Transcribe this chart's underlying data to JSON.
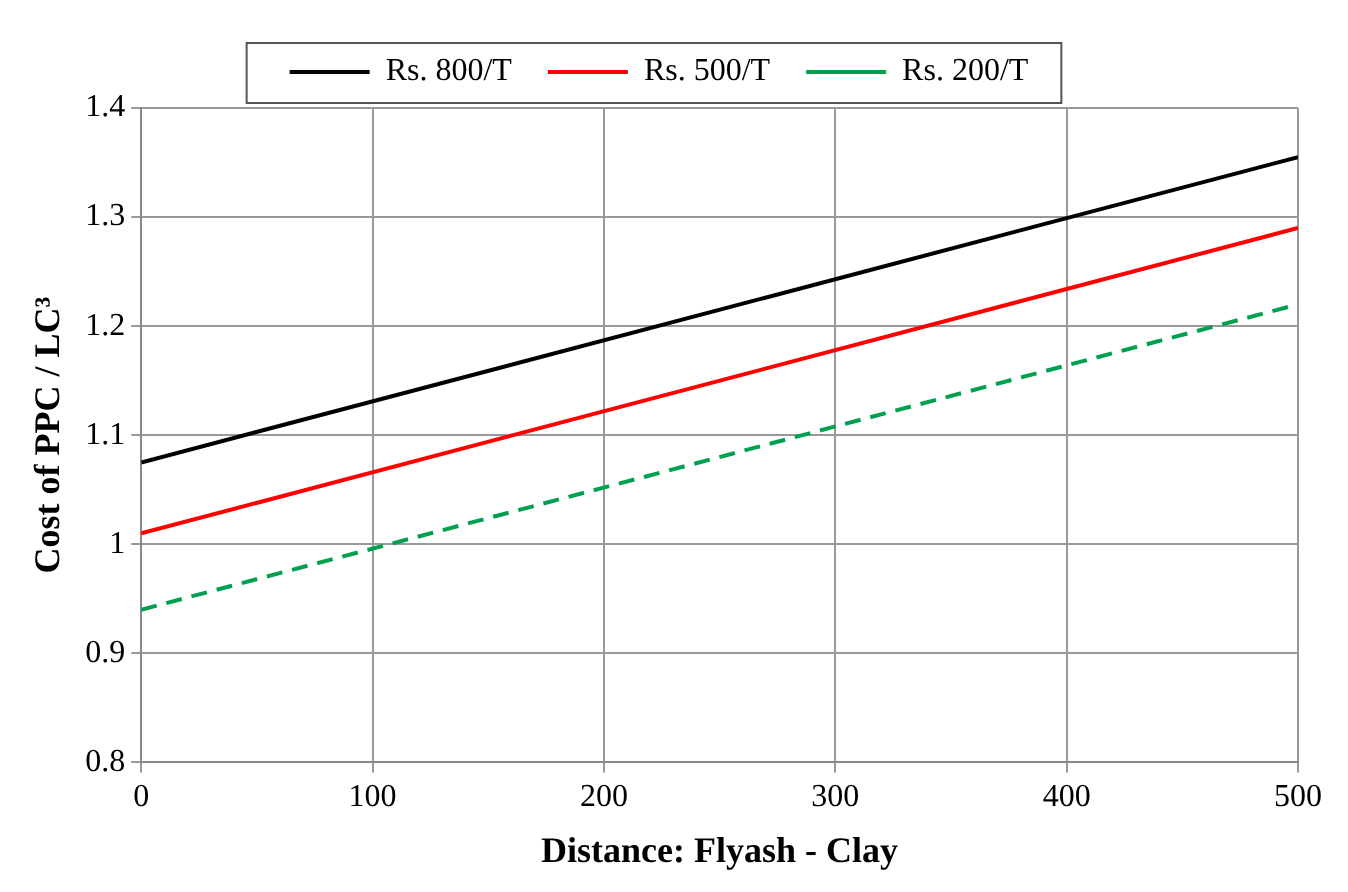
{
  "chart_data": {
    "type": "line",
    "xlabel": "Distance: Flyash - Clay",
    "ylabel": "Cost of PPC / LC³",
    "x": [
      0,
      500
    ],
    "series": [
      {
        "name": "Rs. 800/T",
        "color": "#000000",
        "values": [
          1.075,
          1.355
        ]
      },
      {
        "name": "Rs. 500/T",
        "color": "#ff0000",
        "values": [
          1.01,
          1.29
        ]
      },
      {
        "name": "Rs. 200/T",
        "color": "#00a050",
        "values": [
          0.94,
          1.22
        ],
        "line_style": "dashed"
      }
    ],
    "xlim": [
      0,
      500
    ],
    "xticks": [
      0,
      100,
      200,
      300,
      400,
      500
    ],
    "ylim": [
      0.8,
      1.4
    ],
    "yticks": [
      0.8,
      0.9,
      1,
      1.1,
      1.2,
      1.3,
      1.4
    ],
    "grid": true,
    "legend": "top",
    "marker": "none",
    "line_style": "solid"
  }
}
